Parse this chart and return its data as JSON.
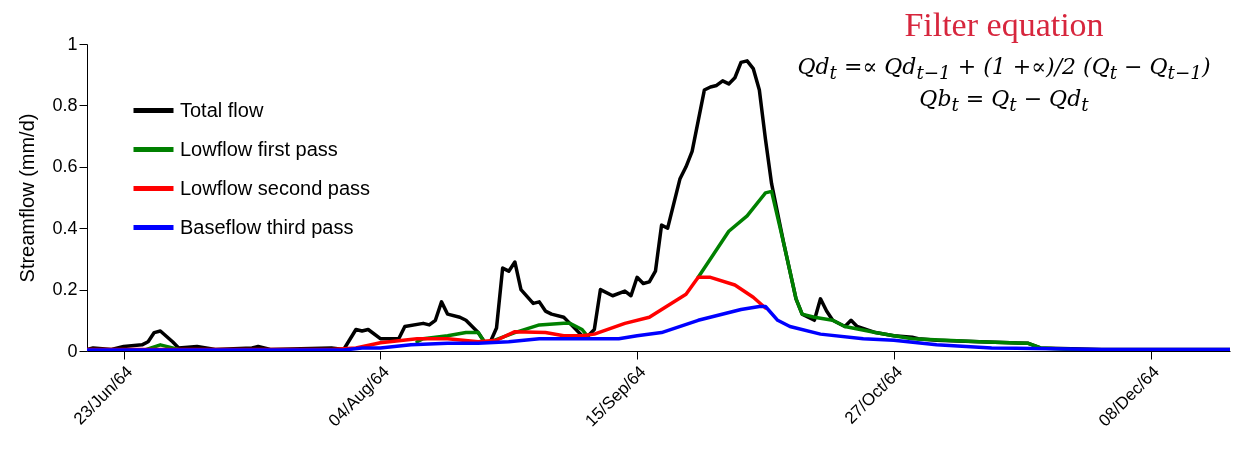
{
  "chart_data": {
    "type": "line",
    "ylabel": "Streamflow (mm/d)",
    "annotations": [
      "Filter equation",
      "Qd$_{t}$ =∝ Qd$_{t−1}$ + (1 +∝)/2 (Q$_{t}$ − Q$_{t−1}$)",
      "Qb$_{t}$ = Q$_{t}$ − Qd$_{t}$"
    ],
    "xlim": [
      "1964-06-17",
      "1964-12-21"
    ],
    "xticks": [
      {
        "value": "1964-06-23",
        "label": "23/Jun/64"
      },
      {
        "value": "1964-08-04",
        "label": "04/Aug/64"
      },
      {
        "value": "1964-09-15",
        "label": "15/Sep/64"
      },
      {
        "value": "1964-10-27",
        "label": "27/Oct/64"
      },
      {
        "value": "1964-12-08",
        "label": "08/Dec/64"
      }
    ],
    "ylim": [
      0,
      1
    ],
    "yticks": [
      0,
      0.2,
      0.4,
      0.6,
      0.8,
      1
    ],
    "grid": false,
    "legend": "top left",
    "line_style": "solid",
    "marker": "none",
    "series": [
      {
        "name": "Total flow",
        "color": "#000000",
        "x": [
          "1964-06-17",
          "1964-06-18",
          "1964-06-21",
          "1964-06-23",
          "1964-06-26",
          "1964-06-27",
          "1964-06-28",
          "1964-06-29",
          "1964-07-01",
          "1964-07-02",
          "1964-07-05",
          "1964-07-08",
          "1964-07-14",
          "1964-07-15",
          "1964-07-17",
          "1964-07-27",
          "1964-07-29",
          "1964-07-31",
          "1964-08-01",
          "1964-08-02",
          "1964-08-04",
          "1964-08-07",
          "1964-08-08",
          "1964-08-11",
          "1964-08-12",
          "1964-08-13",
          "1964-08-14",
          "1964-08-15",
          "1964-08-17",
          "1964-08-18",
          "1964-08-20",
          "1964-08-21",
          "1964-08-22",
          "1964-08-23",
          "1964-08-24",
          "1964-08-25",
          "1964-08-26",
          "1964-08-27",
          "1964-08-29",
          "1964-08-30",
          "1964-08-31",
          "1964-09-01",
          "1964-09-03",
          "1964-09-04",
          "1964-09-06",
          "1964-09-07",
          "1964-09-08",
          "1964-09-09",
          "1964-09-11",
          "1964-09-13",
          "1964-09-14",
          "1964-09-15",
          "1964-09-16",
          "1964-09-17",
          "1964-09-18",
          "1964-09-19",
          "1964-09-20",
          "1964-09-22",
          "1964-09-23",
          "1964-09-24",
          "1964-09-26",
          "1964-09-27",
          "1964-09-28",
          "1964-09-29",
          "1964-09-30",
          "1964-10-01",
          "1964-10-02",
          "1964-10-03",
          "1964-10-04",
          "1964-10-05",
          "1964-10-06",
          "1964-10-07",
          "1964-10-09",
          "1964-10-11",
          "1964-10-12",
          "1964-10-14",
          "1964-10-15",
          "1964-10-16",
          "1964-10-17",
          "1964-10-19",
          "1964-10-20",
          "1964-10-21",
          "1964-10-24",
          "1964-10-27",
          "1964-10-30",
          "1964-10-31",
          "1964-11-03",
          "1964-11-10",
          "1964-11-18",
          "1964-11-20",
          "1964-11-30",
          "1964-12-21"
        ],
        "values": [
          0.005,
          0.01,
          0.005,
          0.015,
          0.02,
          0.03,
          0.06,
          0.065,
          0.03,
          0.01,
          0.015,
          0.005,
          0.01,
          0.015,
          0.005,
          0.01,
          0.005,
          0.07,
          0.065,
          0.07,
          0.04,
          0.04,
          0.08,
          0.09,
          0.085,
          0.1,
          0.16,
          0.12,
          0.11,
          0.1,
          0.06,
          0.03,
          0.03,
          0.075,
          0.27,
          0.26,
          0.29,
          0.2,
          0.155,
          0.16,
          0.13,
          0.12,
          0.11,
          0.09,
          0.05,
          0.05,
          0.07,
          0.2,
          0.18,
          0.195,
          0.18,
          0.24,
          0.22,
          0.225,
          0.26,
          0.41,
          0.4,
          0.56,
          0.6,
          0.65,
          0.85,
          0.86,
          0.865,
          0.88,
          0.87,
          0.89,
          0.94,
          0.945,
          0.92,
          0.85,
          0.69,
          0.545,
          0.35,
          0.17,
          0.12,
          0.1,
          0.17,
          0.13,
          0.1,
          0.08,
          0.1,
          0.08,
          0.06,
          0.05,
          0.045,
          0.04,
          0.035,
          0.03,
          0.025,
          0.01,
          0.005,
          0.005
        ]
      },
      {
        "name": "Lowflow first pass",
        "color": "#008000",
        "x": [
          "1964-06-17",
          "1964-06-26",
          "1964-06-29",
          "1964-07-02",
          "1964-07-05",
          "1964-07-27",
          "1964-08-04",
          "1964-08-10",
          "1964-08-11",
          "1964-08-15",
          "1964-08-18",
          "1964-08-20",
          "1964-08-21",
          "1964-08-22",
          "1964-08-26",
          "1964-08-30",
          "1964-09-03",
          "1964-09-04",
          "1964-09-06",
          "1964-09-07",
          "1964-09-13",
          "1964-09-17",
          "1964-09-23",
          "1964-09-25",
          "1964-09-30",
          "1964-10-03",
          "1964-10-06",
          "1964-10-07",
          "1964-10-09",
          "1964-10-11",
          "1964-10-12",
          "1964-10-14",
          "1964-10-17",
          "1964-10-19",
          "1964-10-24",
          "1964-10-27",
          "1964-10-30",
          "1964-11-10",
          "1964-11-18",
          "1964-11-20",
          "1964-11-30",
          "1964-12-21"
        ],
        "values": [
          0,
          0,
          0.02,
          0.005,
          0,
          0,
          null,
          0.03,
          0.04,
          0.05,
          0.06,
          0.06,
          0.03,
          0.03,
          0.06,
          0.085,
          0.09,
          0.09,
          0.07,
          0.045,
          null,
          null,
          null,
          0.24,
          0.39,
          0.44,
          0.515,
          0.52,
          0.35,
          0.17,
          0.12,
          0.11,
          0.1,
          0.08,
          0.06,
          0.05,
          0.04,
          0.03,
          0.025,
          0.01,
          0,
          0
        ]
      },
      {
        "name": "Lowflow second pass",
        "color": "#ff0000",
        "x": [
          "1964-06-17",
          "1964-07-27",
          "1964-07-31",
          "1964-08-04",
          "1964-08-10",
          "1964-08-15",
          "1964-08-20",
          "1964-08-23",
          "1964-08-26",
          "1964-08-31",
          "1964-09-03",
          "1964-09-06",
          "1964-09-08",
          "1964-09-13",
          "1964-09-17",
          "1964-09-23",
          "1964-09-25",
          "1964-09-27",
          "1964-10-01",
          "1964-10-04",
          "1964-10-06"
        ],
        "values": [
          0.005,
          0.005,
          0.01,
          0.027,
          0.04,
          0.04,
          0.03,
          0.035,
          0.063,
          0.06,
          0.05,
          0.05,
          0.055,
          0.09,
          0.11,
          0.185,
          0.24,
          0.24,
          0.215,
          0.175,
          0.14
        ]
      },
      {
        "name": "Baseflow third pass",
        "color": "#0000ff",
        "x": [
          "1964-06-17",
          "1964-07-29",
          "1964-08-01",
          "1964-08-04",
          "1964-08-09",
          "1964-08-15",
          "1964-08-20",
          "1964-08-25",
          "1964-08-30",
          "1964-09-06",
          "1964-09-12",
          "1964-09-15",
          "1964-09-19",
          "1964-09-25",
          "1964-10-02",
          "1964-10-05",
          "1964-10-06",
          "1964-10-08",
          "1964-10-10",
          "1964-10-15",
          "1964-10-22",
          "1964-10-27",
          "1964-11-03",
          "1964-11-12",
          "1964-11-30",
          "1964-12-21"
        ],
        "values": [
          0.003,
          0.003,
          0.01,
          0.01,
          0.02,
          0.025,
          0.025,
          0.03,
          0.04,
          0.04,
          0.04,
          0.05,
          0.06,
          0.1,
          0.135,
          0.145,
          0.145,
          0.1,
          0.08,
          0.055,
          0.04,
          0.035,
          0.02,
          0.01,
          0.005,
          0.005
        ]
      }
    ]
  }
}
